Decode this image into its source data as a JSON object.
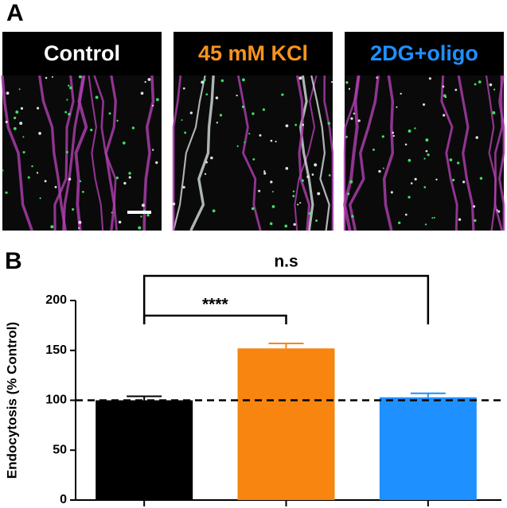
{
  "panels": {
    "a": {
      "label": "A",
      "images": [
        {
          "title": "Control",
          "color": "#ffffff"
        },
        {
          "title": "45 mM KCl",
          "color": "#f7941d"
        },
        {
          "title": "2DG+oligo",
          "color": "#1e90ff"
        }
      ]
    },
    "b": {
      "label": "B"
    }
  },
  "chart_data": {
    "type": "bar",
    "ylabel": "Endocytosis (% Control)",
    "categories": [
      null,
      null,
      null
    ],
    "values": [
      100,
      152,
      103
    ],
    "errors": [
      4,
      5,
      4
    ],
    "colors": [
      "#000000",
      "#f7850f",
      "#1e90ff"
    ],
    "ylim": [
      0,
      200
    ],
    "yticks": [
      0,
      50,
      100,
      150,
      200
    ],
    "reference_line": 100,
    "annotations": [
      {
        "text": "****",
        "from": 0,
        "to": 1
      },
      {
        "text": "n.s",
        "from": 0,
        "to": 2
      }
    ]
  }
}
